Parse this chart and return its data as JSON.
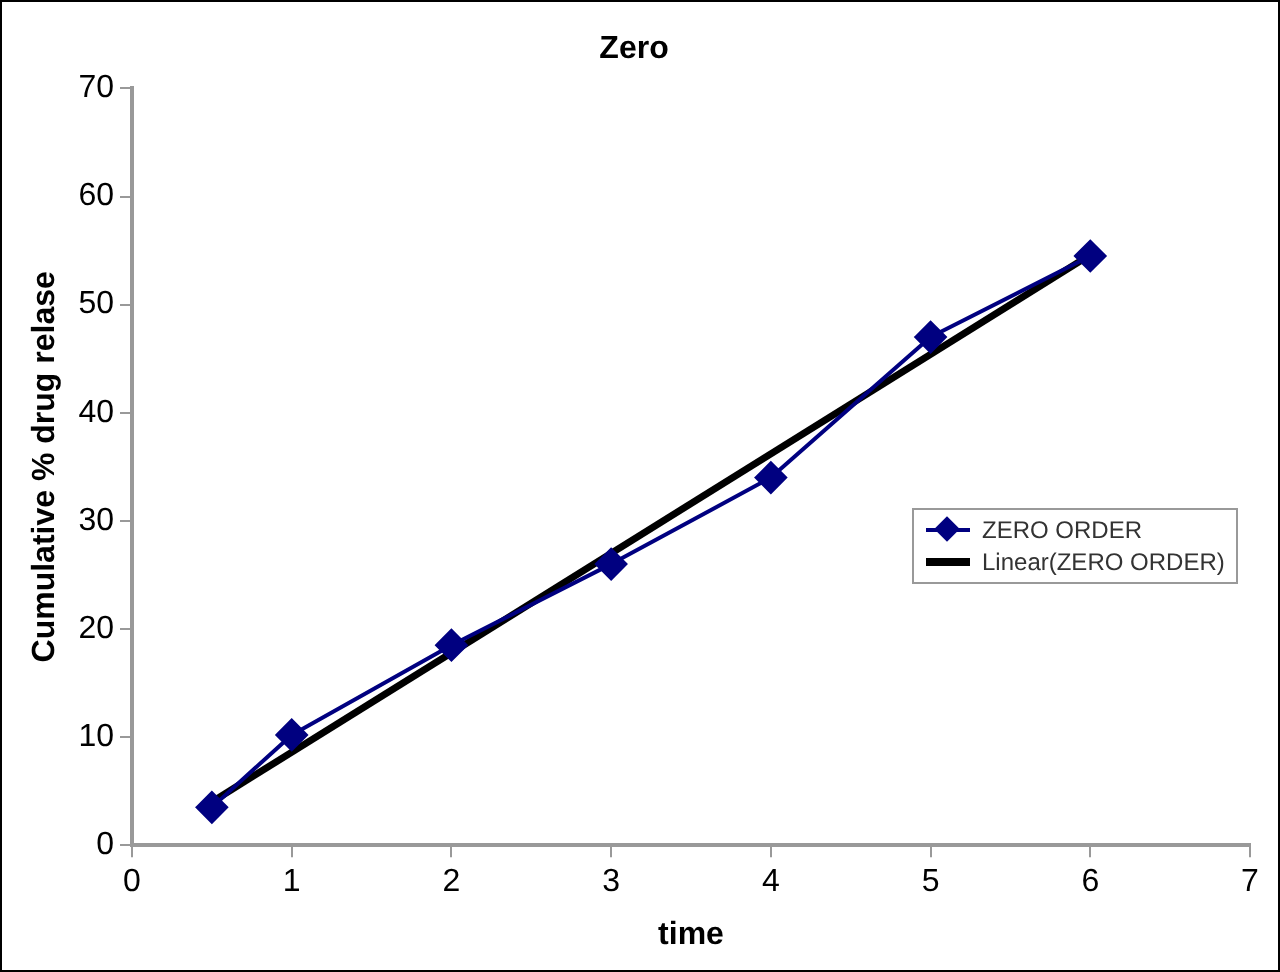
{
  "chart_data": {
    "type": "line",
    "title": "Zero",
    "xlabel": "time",
    "ylabel": "Cumulative % drug relase",
    "x": [
      0.5,
      1,
      2,
      3,
      4,
      5,
      6
    ],
    "series": [
      {
        "name": "ZERO ORDER",
        "color": "#000080",
        "values": [
          3.5,
          10.2,
          18.5,
          26,
          34,
          47,
          54.5
        ],
        "marker": "diamond"
      },
      {
        "name": "Linear(ZERO ORDER)",
        "type": "line",
        "color": "#000000",
        "x": [
          0.5,
          6
        ],
        "values": [
          4,
          54.6
        ],
        "marker": "none"
      }
    ],
    "xlim": [
      0,
      7
    ],
    "xticks": [
      0,
      1,
      2,
      3,
      4,
      5,
      6,
      7
    ],
    "ylim": [
      0,
      70
    ],
    "yticks": [
      0,
      10,
      20,
      30,
      40,
      50,
      60,
      70
    ],
    "grid": false,
    "legend": "right"
  }
}
